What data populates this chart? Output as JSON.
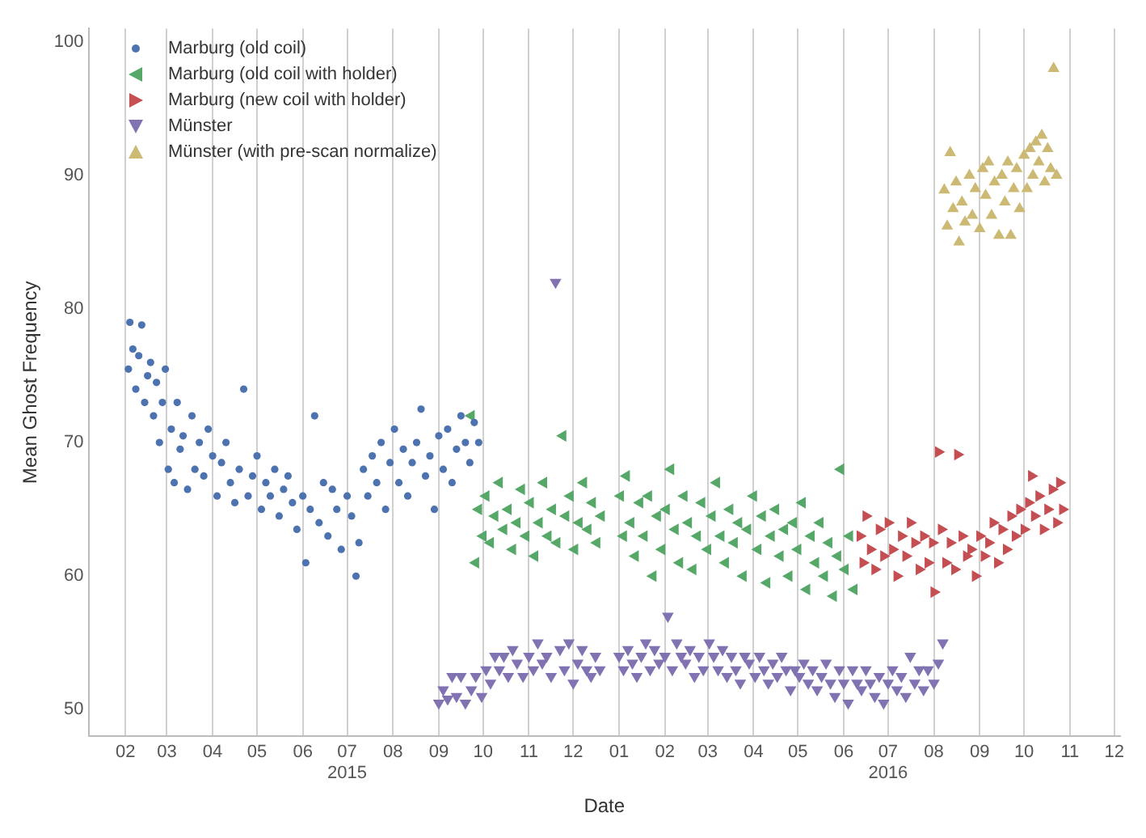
{
  "chart_data": {
    "type": "scatter",
    "xlabel": "Date",
    "ylabel": "Mean Ghost Frequency",
    "legend": "top left",
    "grid": "x",
    "xlim": [
      "2015-01-07",
      "2016-12-05"
    ],
    "xticks": [
      {
        "value": "2015-02-01",
        "label": "02"
      },
      {
        "value": "2015-03-01",
        "label": "03"
      },
      {
        "value": "2015-04-01",
        "label": "04"
      },
      {
        "value": "2015-05-01",
        "label": "05"
      },
      {
        "value": "2015-06-01",
        "label": "06"
      },
      {
        "value": "2015-07-01",
        "label": "07\n2015"
      },
      {
        "value": "2015-08-01",
        "label": "08"
      },
      {
        "value": "2015-09-01",
        "label": "09"
      },
      {
        "value": "2015-10-01",
        "label": "10"
      },
      {
        "value": "2015-11-01",
        "label": "11"
      },
      {
        "value": "2015-12-01",
        "label": "12"
      },
      {
        "value": "2016-01-01",
        "label": "01"
      },
      {
        "value": "2016-02-01",
        "label": "02"
      },
      {
        "value": "2016-03-01",
        "label": "03"
      },
      {
        "value": "2016-04-01",
        "label": "04"
      },
      {
        "value": "2016-05-01",
        "label": "05"
      },
      {
        "value": "2016-06-01",
        "label": "06"
      },
      {
        "value": "2016-07-01",
        "label": "07\n2016"
      },
      {
        "value": "2016-08-01",
        "label": "08"
      },
      {
        "value": "2016-09-01",
        "label": "09"
      },
      {
        "value": "2016-10-01",
        "label": "10"
      },
      {
        "value": "2016-11-01",
        "label": "11"
      },
      {
        "value": "2016-12-01",
        "label": "12"
      }
    ],
    "ylim": [
      48,
      101
    ],
    "yticks": [
      50,
      60,
      70,
      80,
      90,
      100
    ],
    "series": [
      {
        "name": "Marburg (old coil)",
        "color": "#4c72b0",
        "marker": "circle",
        "x": [
          "2015-02-03",
          "2015-02-04",
          "2015-02-06",
          "2015-02-08",
          "2015-02-10",
          "2015-02-12",
          "2015-02-14",
          "2015-02-16",
          "2015-02-18",
          "2015-02-20",
          "2015-02-22",
          "2015-02-24",
          "2015-02-26",
          "2015-02-28",
          "2015-03-02",
          "2015-03-04",
          "2015-03-06",
          "2015-03-08",
          "2015-03-10",
          "2015-03-12",
          "2015-03-15",
          "2015-03-18",
          "2015-03-20",
          "2015-03-23",
          "2015-03-26",
          "2015-03-29",
          "2015-04-01",
          "2015-04-04",
          "2015-04-07",
          "2015-04-10",
          "2015-04-13",
          "2015-04-16",
          "2015-04-19",
          "2015-04-22",
          "2015-04-25",
          "2015-04-28",
          "2015-05-01",
          "2015-05-04",
          "2015-05-07",
          "2015-05-10",
          "2015-05-13",
          "2015-05-16",
          "2015-05-19",
          "2015-05-22",
          "2015-05-25",
          "2015-05-28",
          "2015-06-01",
          "2015-06-03",
          "2015-06-06",
          "2015-06-09",
          "2015-06-12",
          "2015-06-15",
          "2015-06-18",
          "2015-06-21",
          "2015-06-24",
          "2015-06-27",
          "2015-07-01",
          "2015-07-04",
          "2015-07-07",
          "2015-07-09",
          "2015-07-12",
          "2015-07-15",
          "2015-07-18",
          "2015-07-21",
          "2015-07-24",
          "2015-07-27",
          "2015-07-30",
          "2015-08-02",
          "2015-08-05",
          "2015-08-08",
          "2015-08-11",
          "2015-08-14",
          "2015-08-17",
          "2015-08-20",
          "2015-08-23",
          "2015-08-26",
          "2015-08-29",
          "2015-09-01",
          "2015-09-04",
          "2015-09-07",
          "2015-09-10",
          "2015-09-13",
          "2015-09-16",
          "2015-09-19",
          "2015-09-22",
          "2015-09-25",
          "2015-09-28"
        ],
        "values": [
          75.5,
          79,
          77,
          74,
          76.5,
          78.8,
          73,
          75,
          76,
          72,
          74.5,
          70,
          73,
          75.5,
          68,
          71,
          67,
          73,
          69.5,
          70.5,
          66.5,
          72,
          68,
          70,
          67.5,
          71,
          69,
          66,
          68.5,
          70,
          67,
          65.5,
          68,
          74,
          66,
          67.5,
          69,
          65,
          67,
          66,
          68,
          64.5,
          66.5,
          67.5,
          65.5,
          63.5,
          66,
          61,
          65,
          72,
          64,
          67,
          63,
          66.5,
          65,
          62,
          66,
          64.5,
          60,
          62.5,
          68,
          66,
          69,
          67,
          70,
          65,
          68.5,
          71,
          67,
          69.5,
          66,
          68.5,
          70,
          72.5,
          67.5,
          69,
          65,
          70.5,
          68,
          71,
          67,
          69.5,
          72,
          70,
          68.5,
          71.5,
          70
        ]
      },
      {
        "name": "Marburg (old coil with holder)",
        "color": "#55a868",
        "marker": "triangle-left",
        "x": [
          "2015-09-23",
          "2015-09-26",
          "2015-09-28",
          "2015-10-01",
          "2015-10-03",
          "2015-10-06",
          "2015-10-09",
          "2015-10-12",
          "2015-10-15",
          "2015-10-18",
          "2015-10-21",
          "2015-10-24",
          "2015-10-27",
          "2015-10-30",
          "2015-11-02",
          "2015-11-05",
          "2015-11-08",
          "2015-11-11",
          "2015-11-14",
          "2015-11-17",
          "2015-11-20",
          "2015-11-24",
          "2015-11-26",
          "2015-11-29",
          "2015-12-02",
          "2015-12-05",
          "2015-12-08",
          "2015-12-11",
          "2015-12-14",
          "2015-12-17",
          "2015-12-20",
          "2016-01-02",
          "2016-01-04",
          "2016-01-06",
          "2016-01-09",
          "2016-01-12",
          "2016-01-15",
          "2016-01-18",
          "2016-01-21",
          "2016-01-24",
          "2016-01-27",
          "2016-01-30",
          "2016-02-02",
          "2016-02-05",
          "2016-02-08",
          "2016-02-11",
          "2016-02-14",
          "2016-02-17",
          "2016-02-20",
          "2016-02-23",
          "2016-02-26",
          "2016-03-01",
          "2016-03-04",
          "2016-03-07",
          "2016-03-10",
          "2016-03-13",
          "2016-03-16",
          "2016-03-19",
          "2016-03-22",
          "2016-03-25",
          "2016-03-28",
          "2016-04-01",
          "2016-04-04",
          "2016-04-07",
          "2016-04-10",
          "2016-04-13",
          "2016-04-16",
          "2016-04-19",
          "2016-04-22",
          "2016-04-25",
          "2016-04-28",
          "2016-05-01",
          "2016-05-04",
          "2016-05-07",
          "2016-05-10",
          "2016-05-13",
          "2016-05-16",
          "2016-05-19",
          "2016-05-22",
          "2016-05-25",
          "2016-05-28",
          "2016-05-30",
          "2016-06-02",
          "2016-06-05",
          "2016-06-08"
        ],
        "values": [
          72,
          61,
          65,
          63,
          66,
          62.5,
          64.5,
          67,
          63.5,
          65,
          62,
          64,
          66.5,
          63,
          65.5,
          61.5,
          64,
          67,
          63,
          65,
          62.5,
          70.5,
          64.5,
          66,
          62,
          64,
          67,
          63.5,
          65.5,
          62.5,
          64.5,
          66,
          63,
          67.5,
          64,
          61.5,
          65.5,
          63,
          66,
          60,
          64.5,
          62,
          65,
          68,
          63.5,
          61,
          66,
          64,
          60.5,
          63,
          65.5,
          62,
          64.5,
          67,
          63,
          61,
          65,
          62.5,
          64,
          60,
          63.5,
          66,
          62,
          64.5,
          59.5,
          63,
          65,
          61.5,
          63.5,
          60,
          64,
          62,
          65.5,
          59,
          63,
          61,
          64,
          60,
          62.5,
          58.5,
          61.5,
          68,
          60.5,
          63,
          59
        ]
      },
      {
        "name": "Marburg (new coil with holder)",
        "color": "#c44e52",
        "marker": "triangle-right",
        "x": [
          "2016-06-12",
          "2016-06-14",
          "2016-06-16",
          "2016-06-19",
          "2016-06-22",
          "2016-06-25",
          "2016-06-28",
          "2016-07-01",
          "2016-07-04",
          "2016-07-07",
          "2016-07-10",
          "2016-07-13",
          "2016-07-16",
          "2016-07-19",
          "2016-07-22",
          "2016-07-25",
          "2016-07-28",
          "2016-07-31",
          "2016-08-01",
          "2016-08-04",
          "2016-08-06",
          "2016-08-09",
          "2016-08-12",
          "2016-08-15",
          "2016-08-17",
          "2016-08-20",
          "2016-08-23",
          "2016-08-26",
          "2016-08-29",
          "2016-09-01",
          "2016-09-04",
          "2016-09-07",
          "2016-09-10",
          "2016-09-13",
          "2016-09-16",
          "2016-09-19",
          "2016-09-22",
          "2016-09-25",
          "2016-09-28",
          "2016-10-01",
          "2016-10-04",
          "2016-10-06",
          "2016-10-08",
          "2016-10-11",
          "2016-10-14",
          "2016-10-17",
          "2016-10-20",
          "2016-10-23",
          "2016-10-25",
          "2016-10-27"
        ],
        "values": [
          63,
          61,
          64.5,
          62,
          60.5,
          63.5,
          61.5,
          64,
          62,
          60,
          63,
          61.5,
          64,
          62.5,
          60.5,
          63,
          61,
          62.5,
          58.8,
          69.3,
          63.5,
          61,
          62.5,
          60.5,
          69.1,
          63,
          61.5,
          62,
          60,
          63,
          61.5,
          62.5,
          64,
          61,
          63.5,
          62,
          64.5,
          63,
          65,
          63.5,
          65.5,
          67.5,
          64.5,
          66,
          63.5,
          65,
          66.5,
          64,
          67,
          65
        ]
      },
      {
        "name": "Münster",
        "color": "#8172b2",
        "marker": "triangle-down",
        "x": [
          "2015-09-01",
          "2015-09-04",
          "2015-09-07",
          "2015-09-10",
          "2015-09-13",
          "2015-09-16",
          "2015-09-19",
          "2015-09-23",
          "2015-09-26",
          "2015-09-30",
          "2015-10-03",
          "2015-10-06",
          "2015-10-09",
          "2015-10-12",
          "2015-10-15",
          "2015-10-18",
          "2015-10-21",
          "2015-10-24",
          "2015-10-28",
          "2015-11-01",
          "2015-11-04",
          "2015-11-07",
          "2015-11-10",
          "2015-11-13",
          "2015-11-16",
          "2015-11-19",
          "2015-11-22",
          "2015-11-25",
          "2015-11-28",
          "2015-12-01",
          "2015-12-04",
          "2015-12-07",
          "2015-12-10",
          "2015-12-13",
          "2015-12-16",
          "2015-12-19",
          "2016-01-01",
          "2016-01-04",
          "2016-01-07",
          "2016-01-10",
          "2016-01-13",
          "2016-01-16",
          "2016-01-19",
          "2016-01-22",
          "2016-01-25",
          "2016-01-28",
          "2016-02-01",
          "2016-02-03",
          "2016-02-06",
          "2016-02-09",
          "2016-02-12",
          "2016-02-15",
          "2016-02-18",
          "2016-02-21",
          "2016-02-24",
          "2016-02-27",
          "2016-03-02",
          "2016-03-05",
          "2016-03-08",
          "2016-03-11",
          "2016-03-14",
          "2016-03-17",
          "2016-03-20",
          "2016-03-23",
          "2016-03-26",
          "2016-03-29",
          "2016-04-02",
          "2016-04-05",
          "2016-04-08",
          "2016-04-11",
          "2016-04-14",
          "2016-04-17",
          "2016-04-20",
          "2016-04-23",
          "2016-04-26",
          "2016-04-29",
          "2016-05-02",
          "2016-05-05",
          "2016-05-08",
          "2016-05-11",
          "2016-05-14",
          "2016-05-17",
          "2016-05-20",
          "2016-05-23",
          "2016-05-26",
          "2016-05-29",
          "2016-06-01",
          "2016-06-04",
          "2016-06-07",
          "2016-06-10",
          "2016-06-13",
          "2016-06-16",
          "2016-06-19",
          "2016-06-22",
          "2016-06-25",
          "2016-06-28",
          "2016-07-01",
          "2016-07-04",
          "2016-07-07",
          "2016-07-10",
          "2016-07-13",
          "2016-07-16",
          "2016-07-19",
          "2016-07-22",
          "2016-07-25",
          "2016-07-28",
          "2016-08-01",
          "2016-08-04",
          "2016-08-07"
        ],
        "values": [
          50.5,
          51.5,
          50.8,
          52.5,
          51,
          52.5,
          50.5,
          51.5,
          52.5,
          51,
          53,
          52,
          54,
          53,
          54,
          52.5,
          54.5,
          53.5,
          52.5,
          54,
          53,
          55,
          53.5,
          54,
          52.5,
          82,
          54.5,
          53,
          55,
          52,
          53.5,
          54.5,
          53,
          52.5,
          54,
          53,
          54,
          53,
          54.5,
          53.5,
          52.5,
          54,
          55,
          53,
          54.5,
          53.5,
          54,
          57,
          53,
          55,
          54,
          53.5,
          54.5,
          52.5,
          54,
          53,
          55,
          54,
          53,
          54.5,
          52.5,
          54,
          53,
          52,
          54,
          53.5,
          52.5,
          54,
          53,
          52,
          53.5,
          52.5,
          54,
          53,
          51.5,
          53,
          52.5,
          53.5,
          52,
          53,
          51.5,
          52.5,
          53.5,
          52,
          51,
          53,
          52,
          50.5,
          53,
          52,
          51.5,
          53,
          52,
          51,
          52.5,
          50.5,
          52,
          53,
          51.5,
          52.5,
          51,
          54,
          52,
          53,
          51.5,
          53,
          52,
          53.5,
          55
        ]
      },
      {
        "name": "Münster (with pre-scan normalize)",
        "color": "#ccb974",
        "marker": "triangle",
        "x": [
          "2016-08-08",
          "2016-08-10",
          "2016-08-12",
          "2016-08-14",
          "2016-08-16",
          "2016-08-18",
          "2016-08-20",
          "2016-08-22",
          "2016-08-25",
          "2016-08-27",
          "2016-08-29",
          "2016-09-01",
          "2016-09-03",
          "2016-09-05",
          "2016-09-07",
          "2016-09-09",
          "2016-09-11",
          "2016-09-14",
          "2016-09-16",
          "2016-09-18",
          "2016-09-20",
          "2016-09-22",
          "2016-09-24",
          "2016-09-26",
          "2016-09-28",
          "2016-10-01",
          "2016-10-03",
          "2016-10-05",
          "2016-10-07",
          "2016-10-09",
          "2016-10-11",
          "2016-10-13",
          "2016-10-15",
          "2016-10-17",
          "2016-10-19",
          "2016-10-21",
          "2016-10-23"
        ],
        "values": [
          88.9,
          86.2,
          91.7,
          87.5,
          89.5,
          85,
          88,
          86.5,
          90,
          87,
          89,
          86,
          90.5,
          88.5,
          91,
          87,
          89.5,
          85.5,
          90,
          88,
          91,
          85.5,
          89,
          90.5,
          87.5,
          91.5,
          89,
          92,
          90,
          92.5,
          91,
          93,
          89.5,
          92,
          90.5,
          98,
          90
        ]
      }
    ]
  }
}
